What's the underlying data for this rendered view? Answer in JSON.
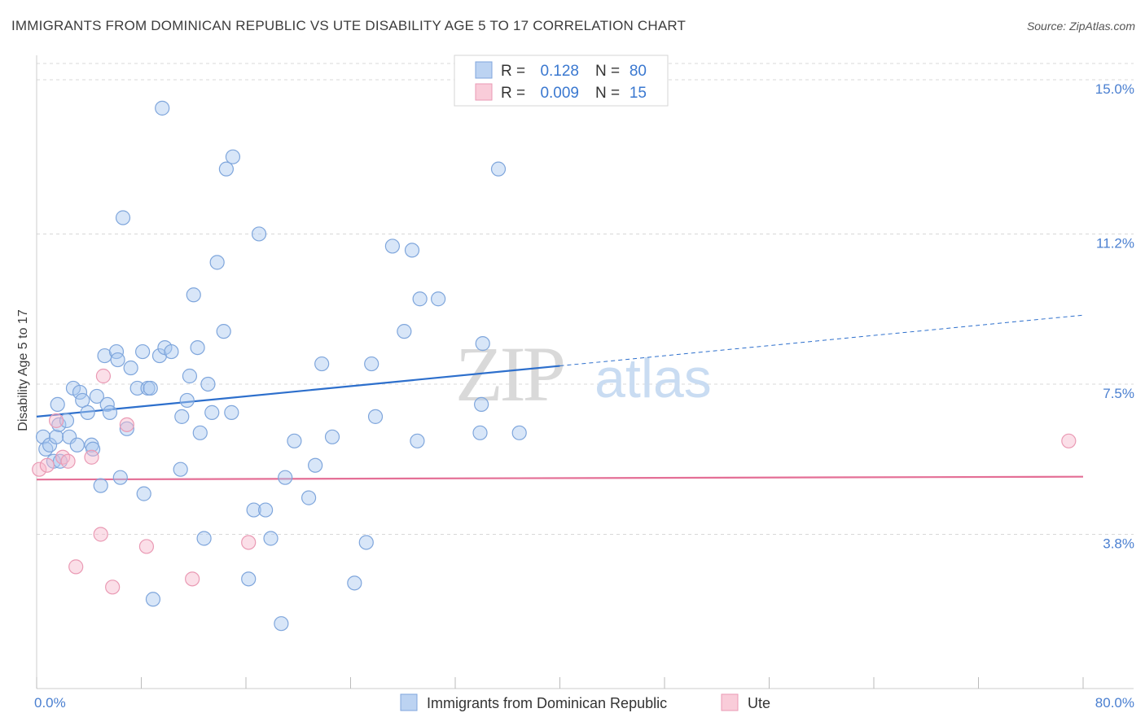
{
  "header": {
    "title": "IMMIGRANTS FROM DOMINICAN REPUBLIC VS UTE DISABILITY AGE 5 TO 17 CORRELATION CHART",
    "source": "Source: ZipAtlas.com"
  },
  "watermark": {
    "zip": "ZIP",
    "atlas": "atlas"
  },
  "colors": {
    "blue": "#a9c8ef",
    "blue_line": "#2d6fcc",
    "pink": "#f6b8cb",
    "pink_line": "#e46f96",
    "axis_text": "#4a7fd0",
    "grid": "#d8d8d8"
  },
  "legend": {
    "rows": [
      {
        "r_label": "R = ",
        "r_value": "0.128",
        "n_label": "N = ",
        "n_value": "80"
      },
      {
        "r_label": "R = ",
        "r_value": "0.009",
        "n_label": "N = ",
        "n_value": "15"
      }
    ]
  },
  "chart_data": {
    "type": "scatter",
    "title": "IMMIGRANTS FROM DOMINICAN REPUBLIC VS UTE DISABILITY AGE 5 TO 17 CORRELATION CHART",
    "xlabel": "",
    "ylabel": "Disability Age 5 to 17",
    "xlim": [
      0,
      80
    ],
    "ylim": [
      0,
      15.4
    ],
    "x_tick_labels": [
      "0.0%",
      "80.0%"
    ],
    "y_ticks": [
      3.8,
      7.5,
      11.2,
      15.0
    ],
    "y_tick_labels": [
      "3.8%",
      "7.5%",
      "11.2%",
      "15.0%"
    ],
    "grid": true,
    "series": [
      {
        "name": "Immigrants from Dominican Republic",
        "color": "blue",
        "r": 0.128,
        "n": 80,
        "trend": {
          "x0": 0,
          "y0": 6.7,
          "x1": 40,
          "y1": 7.95,
          "dash_x1": 80,
          "dash_y1": 9.2
        },
        "points": [
          [
            0.5,
            6.2
          ],
          [
            0.7,
            5.9
          ],
          [
            1.0,
            6.0
          ],
          [
            1.3,
            5.6
          ],
          [
            1.5,
            6.2
          ],
          [
            1.6,
            7.0
          ],
          [
            1.7,
            6.5
          ],
          [
            1.8,
            5.6
          ],
          [
            2.3,
            6.6
          ],
          [
            2.5,
            6.2
          ],
          [
            2.8,
            7.4
          ],
          [
            3.1,
            6.0
          ],
          [
            3.3,
            7.3
          ],
          [
            3.5,
            7.1
          ],
          [
            3.9,
            6.8
          ],
          [
            4.2,
            6.0
          ],
          [
            4.3,
            5.9
          ],
          [
            4.6,
            7.2
          ],
          [
            4.9,
            5.0
          ],
          [
            5.2,
            8.2
          ],
          [
            5.4,
            7.0
          ],
          [
            5.6,
            6.8
          ],
          [
            6.1,
            8.3
          ],
          [
            6.2,
            8.1
          ],
          [
            6.4,
            5.2
          ],
          [
            6.6,
            11.6
          ],
          [
            6.9,
            6.4
          ],
          [
            7.2,
            7.9
          ],
          [
            7.7,
            7.4
          ],
          [
            8.1,
            8.3
          ],
          [
            8.2,
            4.8
          ],
          [
            8.5,
            7.4
          ],
          [
            8.7,
            7.4
          ],
          [
            8.9,
            2.2
          ],
          [
            9.4,
            8.2
          ],
          [
            9.6,
            14.3
          ],
          [
            9.8,
            8.4
          ],
          [
            10.3,
            8.3
          ],
          [
            11.0,
            5.4
          ],
          [
            11.1,
            6.7
          ],
          [
            11.5,
            7.1
          ],
          [
            11.7,
            7.7
          ],
          [
            12.0,
            9.7
          ],
          [
            12.3,
            8.4
          ],
          [
            12.5,
            6.3
          ],
          [
            12.8,
            3.7
          ],
          [
            13.1,
            7.5
          ],
          [
            13.4,
            6.8
          ],
          [
            13.8,
            10.5
          ],
          [
            14.3,
            8.8
          ],
          [
            14.5,
            12.8
          ],
          [
            14.9,
            6.8
          ],
          [
            15.0,
            13.1
          ],
          [
            16.2,
            2.7
          ],
          [
            16.6,
            4.4
          ],
          [
            17.0,
            11.2
          ],
          [
            17.5,
            4.4
          ],
          [
            17.9,
            3.7
          ],
          [
            18.7,
            1.6
          ],
          [
            19.0,
            5.2
          ],
          [
            19.7,
            6.1
          ],
          [
            20.8,
            4.7
          ],
          [
            21.3,
            5.5
          ],
          [
            21.8,
            8.0
          ],
          [
            22.6,
            6.2
          ],
          [
            24.3,
            2.6
          ],
          [
            25.2,
            3.6
          ],
          [
            25.6,
            8.0
          ],
          [
            25.9,
            6.7
          ],
          [
            27.2,
            10.9
          ],
          [
            28.1,
            8.8
          ],
          [
            28.7,
            10.8
          ],
          [
            29.1,
            6.1
          ],
          [
            29.3,
            9.6
          ],
          [
            30.7,
            9.6
          ],
          [
            33.9,
            6.3
          ],
          [
            34.0,
            7.0
          ],
          [
            34.1,
            8.5
          ],
          [
            35.3,
            12.8
          ],
          [
            36.9,
            6.3
          ]
        ]
      },
      {
        "name": "Ute",
        "color": "pink",
        "r": 0.009,
        "n": 15,
        "trend": {
          "x0": 0,
          "y0": 5.15,
          "x1": 80,
          "y1": 5.22
        },
        "points": [
          [
            0.2,
            5.4
          ],
          [
            0.8,
            5.5
          ],
          [
            1.5,
            6.6
          ],
          [
            2.0,
            5.7
          ],
          [
            2.4,
            5.6
          ],
          [
            3.0,
            3.0
          ],
          [
            4.2,
            5.7
          ],
          [
            4.9,
            3.8
          ],
          [
            5.1,
            7.7
          ],
          [
            5.8,
            2.5
          ],
          [
            6.9,
            6.5
          ],
          [
            8.4,
            3.5
          ],
          [
            11.9,
            2.7
          ],
          [
            16.2,
            3.6
          ],
          [
            78.9,
            6.1
          ]
        ]
      }
    ],
    "x_minor_ticks": [
      0,
      8,
      16,
      24,
      32,
      40,
      48,
      56,
      64,
      72,
      80
    ]
  },
  "bottom_legend": {
    "items": [
      {
        "label": "Immigrants from Dominican Republic"
      },
      {
        "label": "Ute"
      }
    ]
  }
}
